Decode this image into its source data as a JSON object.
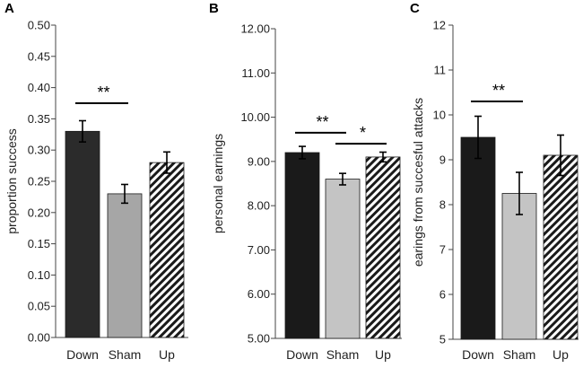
{
  "colors": {
    "black": "#1a1a1a",
    "dark": "#2b2b2b",
    "gray": "#a6a6a6",
    "light": "#c4c4c4"
  },
  "chart_data": [
    {
      "type": "bar",
      "panel": "A",
      "categories": [
        "Down",
        "Sham",
        "Up"
      ],
      "values": [
        0.33,
        0.23,
        0.28
      ],
      "errors": [
        0.017,
        0.015,
        0.017
      ],
      "ylabel": "proportion success",
      "ylim": [
        0.0,
        0.5
      ],
      "ticks": [
        "0.00",
        "0.05",
        "0.10",
        "0.15",
        "0.20",
        "0.25",
        "0.30",
        "0.35",
        "0.40",
        "0.45",
        "0.50"
      ],
      "bar_styles": [
        "dark",
        "gray",
        "hatched"
      ],
      "significance": [
        {
          "from": "Down",
          "to": "Sham",
          "y": 0.375,
          "label": "**"
        }
      ]
    },
    {
      "type": "bar",
      "panel": "B",
      "categories": [
        "Down",
        "Sham",
        "Up"
      ],
      "values": [
        9.2,
        8.6,
        9.1
      ],
      "errors": [
        0.14,
        0.13,
        0.11
      ],
      "ylabel": "personal earnings",
      "ylim": [
        5.0,
        12.0
      ],
      "ticks": [
        "5.00",
        "6.00",
        "7.00",
        "8.00",
        "9.00",
        "10.00",
        "11.00",
        "12.00"
      ],
      "bar_styles": [
        "black",
        "light",
        "hatched"
      ],
      "significance": [
        {
          "from": "Down",
          "to": "Sham",
          "y": 9.65,
          "label": "**"
        },
        {
          "from": "Sham",
          "to": "Up",
          "y": 9.4,
          "label": "*"
        }
      ]
    },
    {
      "type": "bar",
      "panel": "C",
      "categories": [
        "Down",
        "Sham",
        "Up"
      ],
      "values": [
        9.5,
        8.25,
        9.1
      ],
      "errors": [
        0.47,
        0.47,
        0.45
      ],
      "ylabel": "earings from succesful attacks",
      "ylim": [
        5,
        12
      ],
      "ticks": [
        "5",
        "6",
        "7",
        "8",
        "9",
        "10",
        "11",
        "12"
      ],
      "bar_styles": [
        "black",
        "light",
        "hatched"
      ],
      "significance": [
        {
          "from": "Down",
          "to": "Sham",
          "y": 10.3,
          "label": "**"
        }
      ]
    }
  ]
}
